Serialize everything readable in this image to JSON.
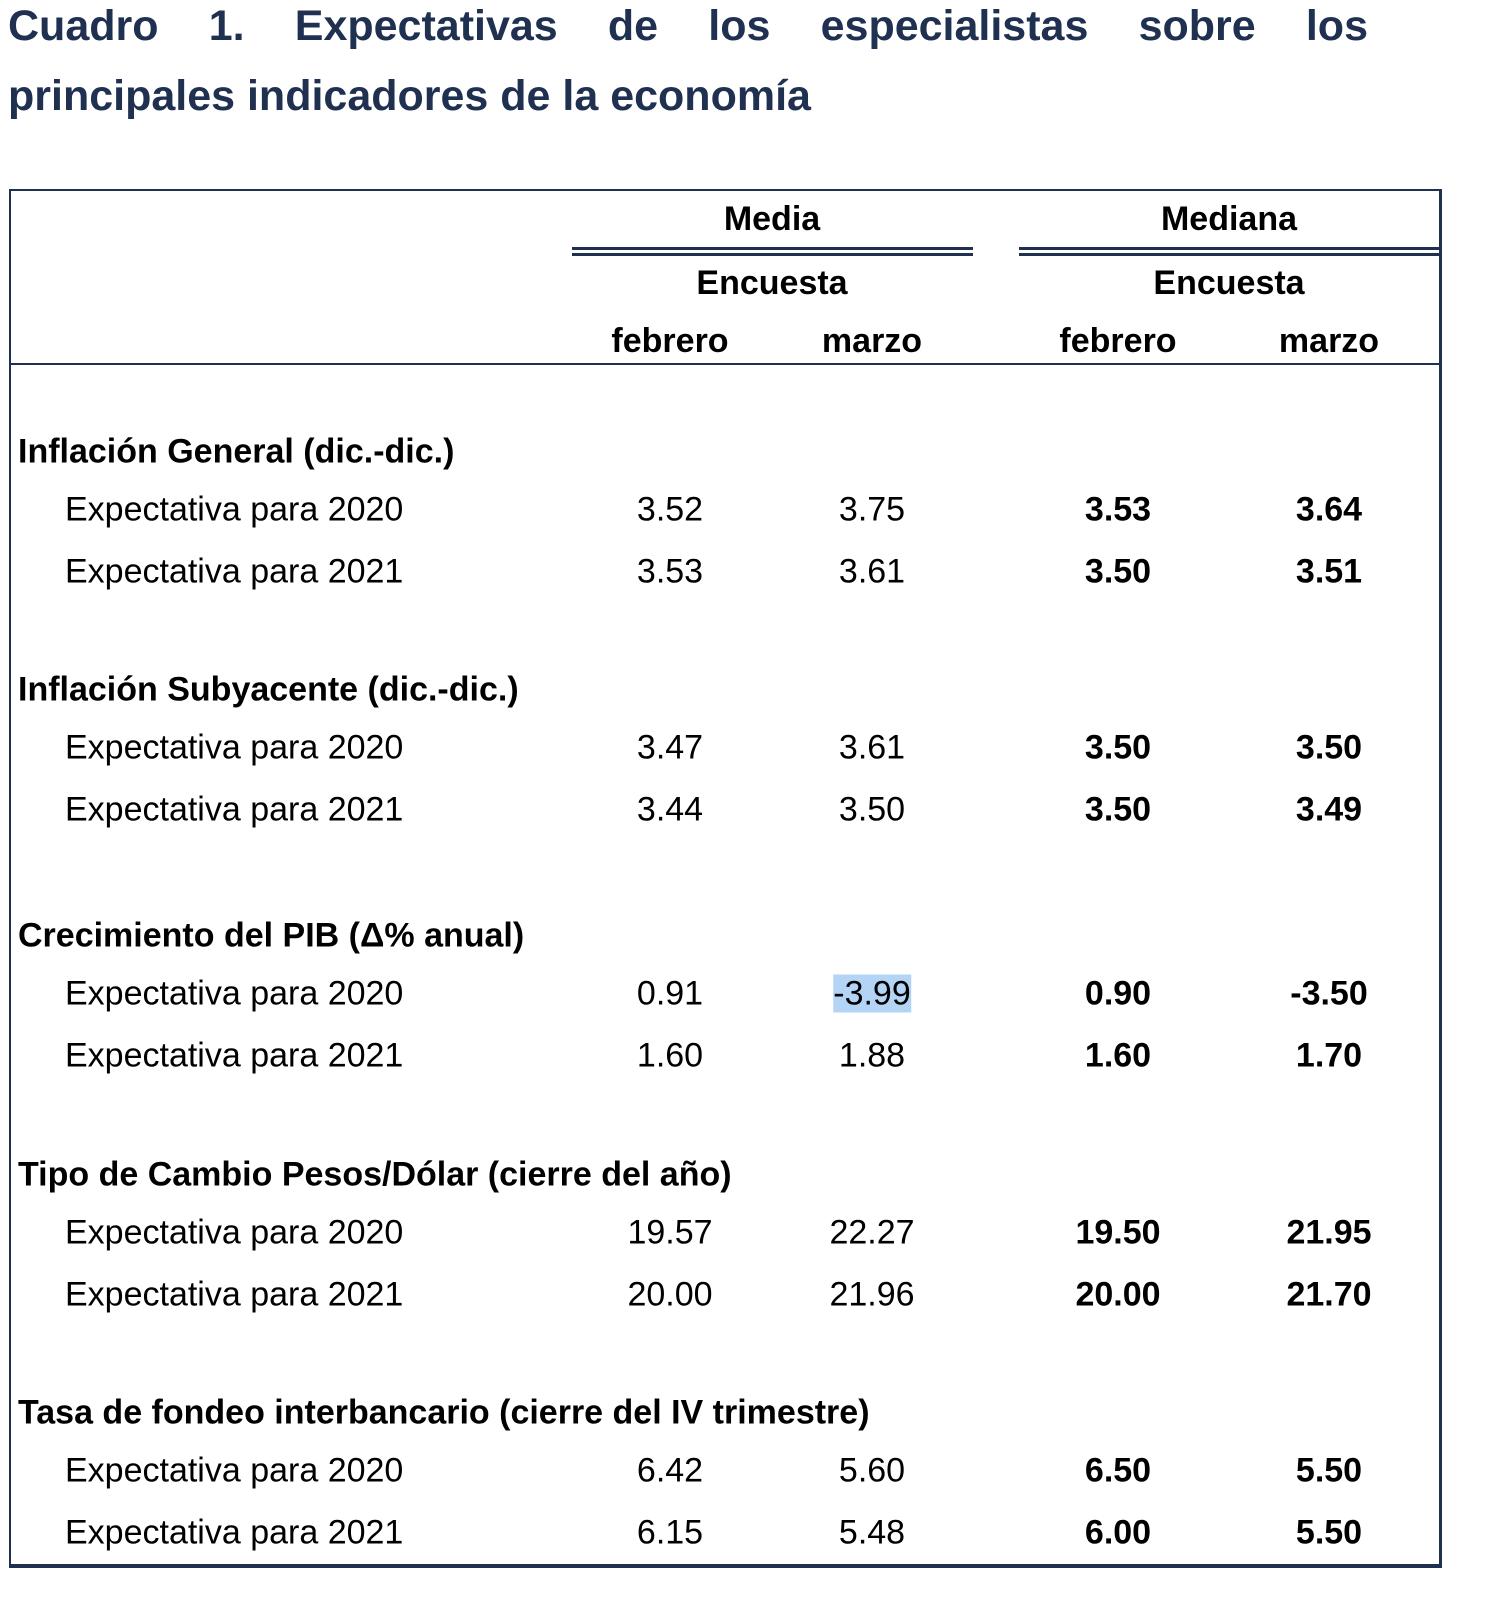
{
  "title_line1": "Cuadro 1. Expectativas de los especialistas sobre los",
  "title_line2": "principales indicadores de la economía",
  "header": {
    "media": "Media",
    "mediana": "Mediana",
    "encuesta": "Encuesta",
    "febrero": "febrero",
    "marzo": "marzo"
  },
  "sections": [
    {
      "title": "Inflación General (dic.-dic.)",
      "rows": [
        {
          "label": "Expectativa para 2020",
          "values": [
            "3.52",
            "3.75",
            "3.53",
            "3.64"
          ]
        },
        {
          "label": "Expectativa para 2021",
          "values": [
            "3.53",
            "3.61",
            "3.50",
            "3.51"
          ]
        }
      ]
    },
    {
      "title": "Inflación Subyacente (dic.-dic.)",
      "rows": [
        {
          "label": "Expectativa para 2020",
          "values": [
            "3.47",
            "3.61",
            "3.50",
            "3.50"
          ]
        },
        {
          "label": "Expectativa para 2021",
          "values": [
            "3.44",
            "3.50",
            "3.50",
            "3.49"
          ]
        }
      ]
    },
    {
      "title": "Crecimiento del PIB (Δ% anual)",
      "rows": [
        {
          "label": "Expectativa para 2020",
          "values": [
            "0.91",
            "-3.99",
            "0.90",
            "-3.50"
          ],
          "highlight": 1
        },
        {
          "label": "Expectativa para 2021",
          "values": [
            "1.60",
            "1.88",
            "1.60",
            "1.70"
          ]
        }
      ]
    },
    {
      "title": "Tipo de Cambio Pesos/Dólar (cierre del año)",
      "rows": [
        {
          "label": "Expectativa para 2020",
          "values": [
            "19.57",
            "22.27",
            "19.50",
            "21.95"
          ]
        },
        {
          "label": "Expectativa para 2021",
          "values": [
            "20.00",
            "21.96",
            "20.00",
            "21.70"
          ]
        }
      ]
    },
    {
      "title": "Tasa de fondeo interbancario (cierre del IV trimestre)",
      "rows": [
        {
          "label": "Expectativa para 2020",
          "values": [
            "6.42",
            "5.60",
            "6.50",
            "5.50"
          ]
        },
        {
          "label": "Expectativa para 2021",
          "values": [
            "6.15",
            "5.48",
            "6.00",
            "5.50"
          ]
        }
      ]
    }
  ]
}
